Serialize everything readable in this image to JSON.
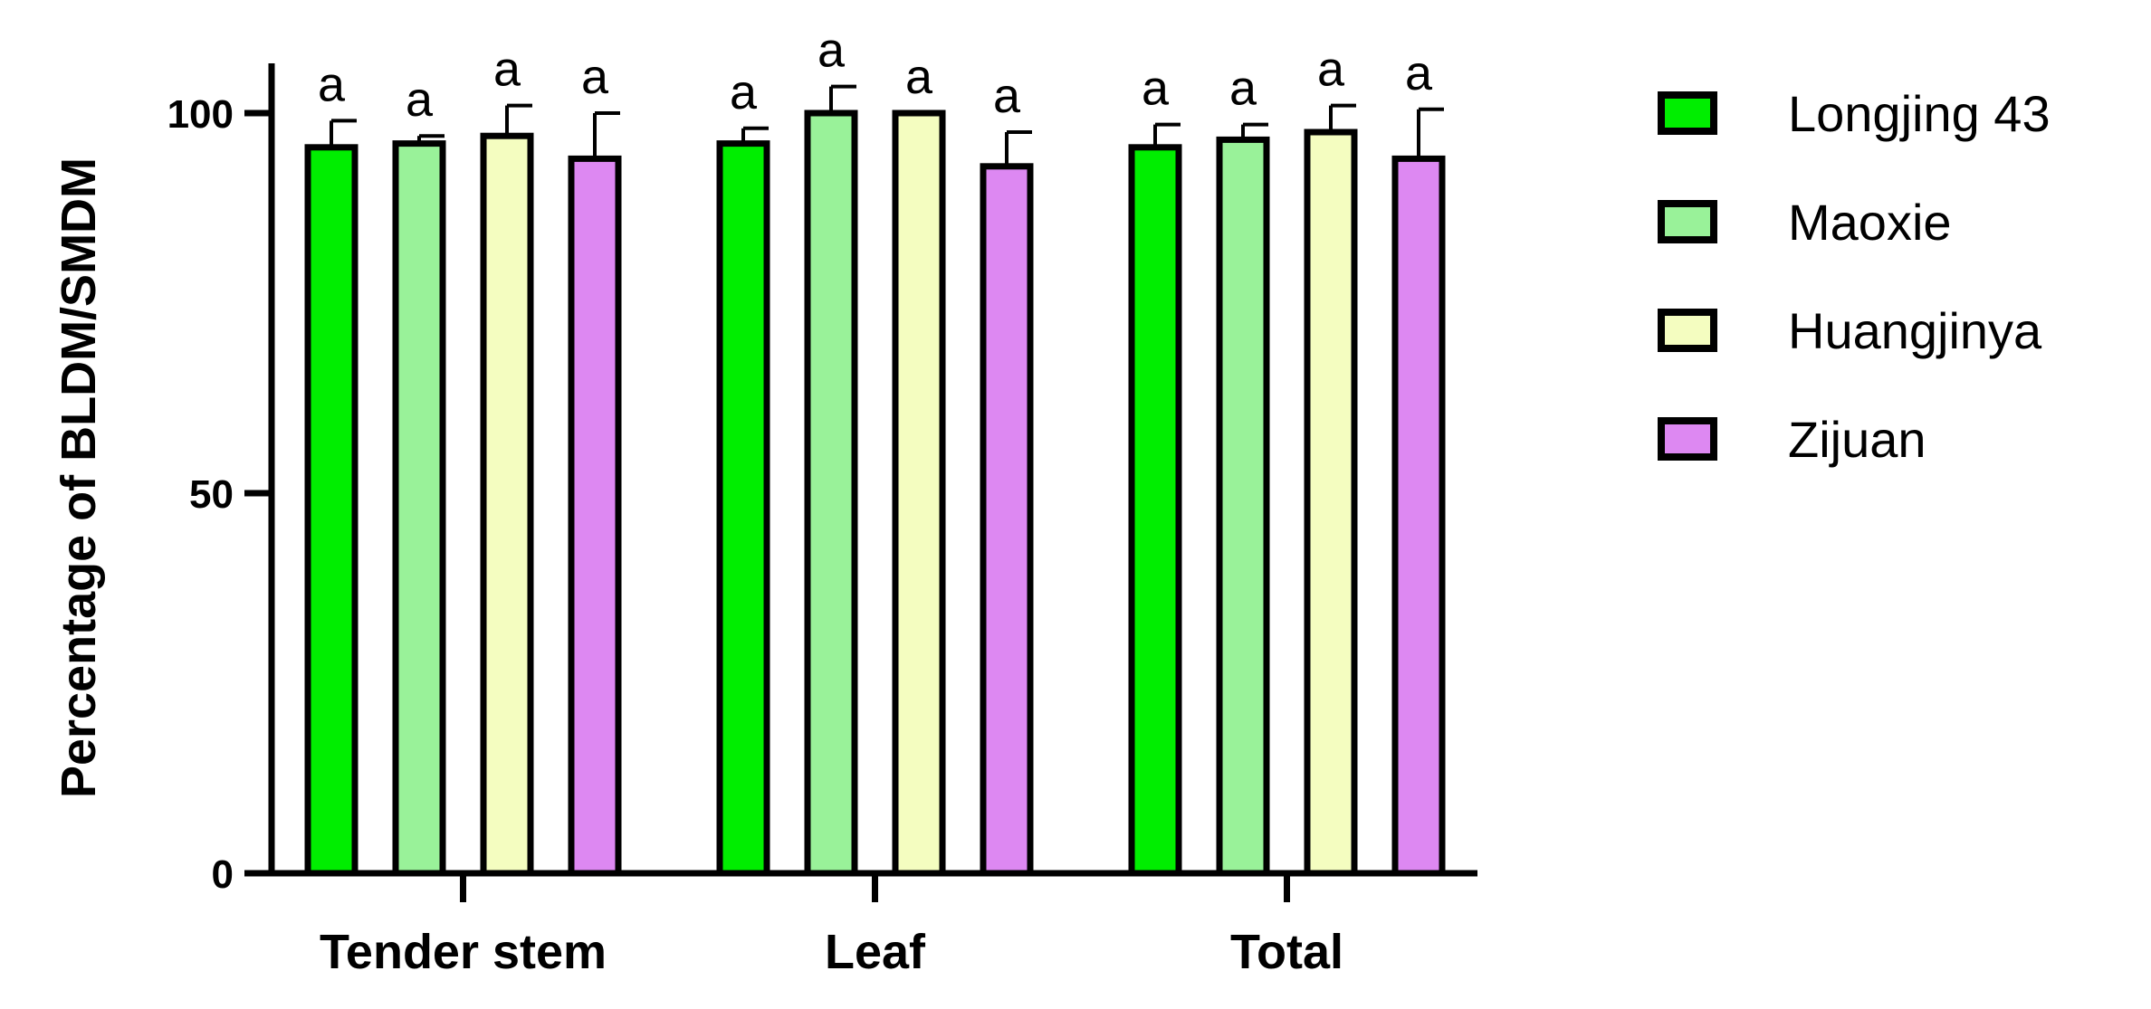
{
  "chart_data": {
    "type": "bar",
    "ylabel": "Percentage of  BLDM/SMDM",
    "ylim": [
      0,
      100
    ],
    "yticks": [
      "0",
      "50",
      "100"
    ],
    "categories": [
      "Tender stem",
      "Leaf",
      "Total"
    ],
    "legend_position": "right",
    "series": [
      {
        "name": "Longjing 43",
        "color": "#00ee00",
        "values": [
          95.5,
          96.0,
          95.5
        ],
        "errors": [
          3.5,
          2.0,
          3.0
        ],
        "sig": [
          "a",
          "a",
          "a"
        ]
      },
      {
        "name": "Maoxie",
        "color": "#99f299",
        "values": [
          96.0,
          100.0,
          96.5
        ],
        "errors": [
          1.0,
          3.5,
          2.0
        ],
        "sig": [
          "a",
          "a",
          "a"
        ]
      },
      {
        "name": "Huangjinya",
        "color": "#f4fdc0",
        "values": [
          97.0,
          100.0,
          97.5
        ],
        "errors": [
          4.0,
          0.0,
          3.5
        ],
        "sig": [
          "a",
          "a",
          "a"
        ]
      },
      {
        "name": "Zijuan",
        "color": "#dd88f2",
        "values": [
          94.0,
          93.0,
          94.0
        ],
        "errors": [
          6.0,
          4.5,
          6.5
        ],
        "sig": [
          "a",
          "a",
          "a"
        ]
      }
    ]
  }
}
